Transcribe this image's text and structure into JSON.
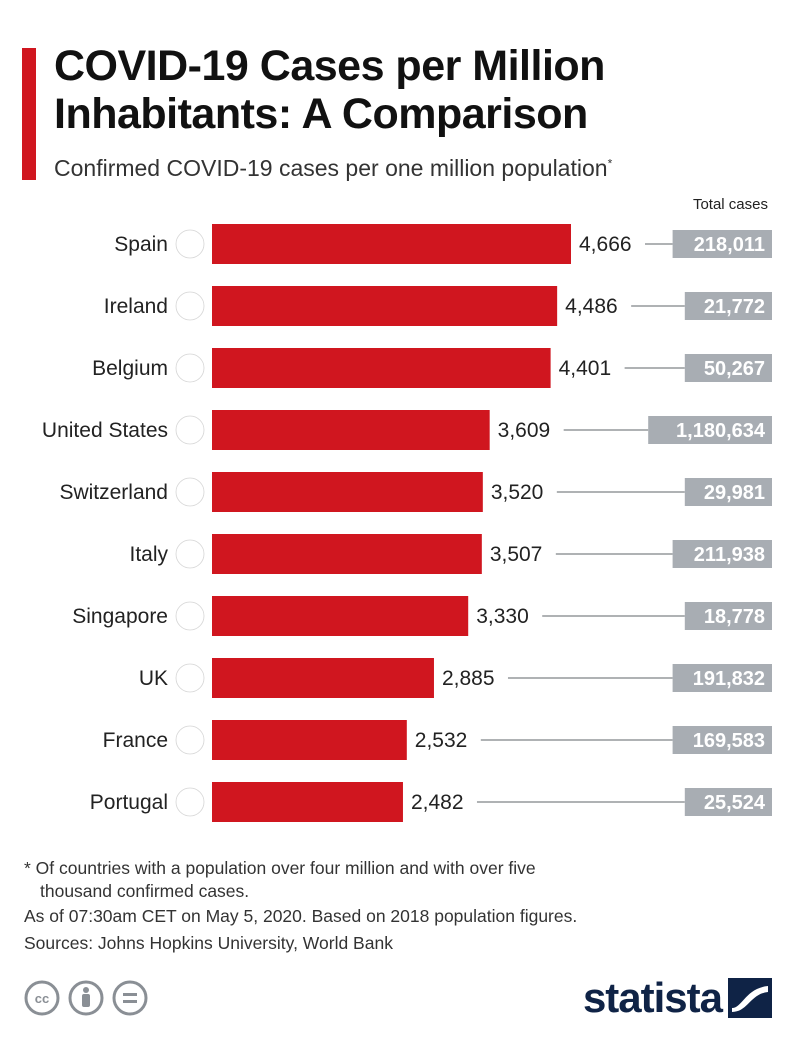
{
  "header": {
    "title_line1": "COVID-19 Cases per Million",
    "title_line2": "Inhabitants: A Comparison",
    "subtitle": "Confirmed COVID-19 cases per one million population",
    "subtitle_mark": "*"
  },
  "chart_data": {
    "type": "bar",
    "orientation": "horizontal",
    "categories": [
      "Spain",
      "Ireland",
      "Belgium",
      "United States",
      "Switzerland",
      "Italy",
      "Singapore",
      "UK",
      "France",
      "Portugal"
    ],
    "values": [
      4666,
      4486,
      4401,
      3609,
      3520,
      3507,
      3330,
      2885,
      2532,
      2482
    ],
    "value_labels": [
      "4,666",
      "4,486",
      "4,401",
      "3,609",
      "3,520",
      "3,507",
      "3,330",
      "2,885",
      "2,532",
      "2,482"
    ],
    "total_cases_header": "Total cases",
    "total_cases": [
      218011,
      21772,
      50267,
      1180634,
      29981,
      211938,
      18778,
      191832,
      169583,
      25524
    ],
    "total_cases_labels": [
      "218,011",
      "21,772",
      "50,267",
      "1,180,634",
      "29,981",
      "211,938",
      "18,778",
      "191,832",
      "169,583",
      "25,524"
    ],
    "flag_icons": [
      "spain-flag-icon",
      "ireland-flag-icon",
      "belgium-flag-icon",
      "united-states-flag-icon",
      "switzerland-flag-icon",
      "italy-flag-icon",
      "singapore-flag-icon",
      "uk-flag-icon",
      "france-flag-icon",
      "portugal-flag-icon"
    ],
    "bar_color": "#d0161f",
    "badge_color": "#a8adb3",
    "xlim": [
      0,
      4666
    ]
  },
  "footer": {
    "note_line1": "* Of countries with a population over four million and with over five",
    "note_line2": "thousand confirmed cases.",
    "asof": "As of 07:30am CET on May 5, 2020. Based on 2018 population figures.",
    "sources": "Sources: Johns Hopkins University, World Bank",
    "brand": "statista",
    "license_icons": [
      "creative-commons-icon",
      "attribution-icon",
      "no-derivatives-icon"
    ]
  },
  "colors": {
    "accent": "#d0161f",
    "brand": "#0f2346",
    "connector": "#7f8388"
  }
}
